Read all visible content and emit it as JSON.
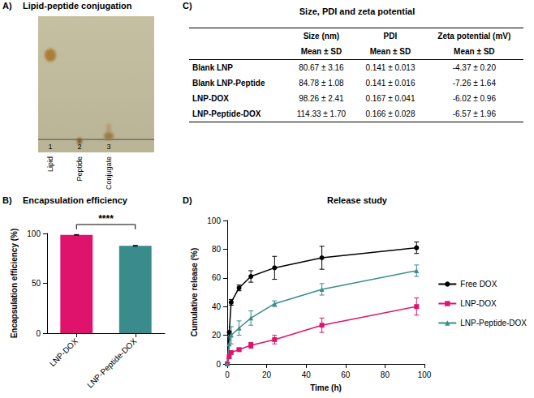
{
  "tlc": {
    "panel": "A)",
    "title": "Lipid-peptide conjugation",
    "lanes": [
      {
        "number": "1",
        "label": "Lipid"
      },
      {
        "number": "2",
        "label": "Peptide"
      },
      {
        "number": "3",
        "label": "Conjugate"
      }
    ]
  },
  "table": {
    "panel": "C)",
    "title": "Size, PDI and zeta potential",
    "columns": [
      "Size (nm)",
      "PDI",
      "Zeta potential (mV)"
    ],
    "subheaders": [
      "Mean ± SD",
      "Mean ± SD",
      "Mean ± SD"
    ],
    "rows": [
      [
        "Blank LNP",
        "80.67 ± 3.16",
        "0.141 ± 0.013",
        "-4.37 ± 0.20"
      ],
      [
        "Blank LNP-Peptide",
        "84.78 ± 1.08",
        "0.141 ± 0.016",
        "-7.26 ± 1.64"
      ],
      [
        "LNP-DOX",
        "98.26 ± 2.41",
        "0.167 ± 0.041",
        "-6.02 ± 0.96"
      ],
      [
        "LNP-Peptide-DOX",
        "114.33 ± 1.70",
        "0.166 ± 0.028",
        "-6.57 ± 1.96"
      ]
    ]
  },
  "chart_data": [
    {
      "panel": "B)",
      "type": "bar",
      "title": "Encapsulation efficiency",
      "y_label": "Encapsulation efficiency (%)",
      "categories": [
        "LNP-DOX",
        "LNP-Peptide-DOX"
      ],
      "values": [
        98.6,
        87.6
      ],
      "errors": [
        0.3,
        0.4
      ],
      "colors": [
        "#e0136c",
        "#3a8c8c"
      ],
      "ylim": [
        0,
        100
      ],
      "yticks": [
        0,
        50,
        100
      ],
      "grid": false,
      "annotations": [
        {
          "text": "****",
          "from": "LNP-DOX",
          "to": "LNP-Peptide-DOX"
        }
      ]
    },
    {
      "panel": "D)",
      "type": "line",
      "title": "Release study",
      "x_label": "Time (h)",
      "y_label": "Cumulative release (%)",
      "x": [
        0,
        1,
        2,
        6,
        12,
        24,
        48,
        96
      ],
      "series": [
        {
          "name": "Free DOX",
          "color": "#000000",
          "marker": "circle",
          "values": [
            0,
            22,
            43,
            53,
            61,
            67,
            74,
            81
          ],
          "errors": [
            0,
            1,
            2,
            2,
            4,
            8,
            8,
            4
          ]
        },
        {
          "name": "LNP-DOX",
          "color": "#e0136c",
          "marker": "square",
          "values": [
            0,
            5,
            8,
            10,
            13,
            17,
            27,
            40
          ],
          "errors": [
            0,
            1,
            1,
            1,
            2,
            3,
            5,
            6
          ]
        },
        {
          "name": "LNP-Peptide-DOX",
          "color": "#3a8c8c",
          "marker": "triangle",
          "values": [
            0,
            14,
            20,
            25,
            32,
            42,
            52,
            65
          ],
          "errors": [
            0,
            5,
            6,
            5,
            5,
            2,
            4,
            4
          ]
        }
      ],
      "xlim": [
        0,
        100
      ],
      "xticks": [
        0,
        20,
        40,
        60,
        80,
        100
      ],
      "ylim": [
        0,
        100
      ],
      "yticks": [
        0,
        20,
        40,
        60,
        80,
        100
      ],
      "legend": "right",
      "grid": false
    }
  ]
}
